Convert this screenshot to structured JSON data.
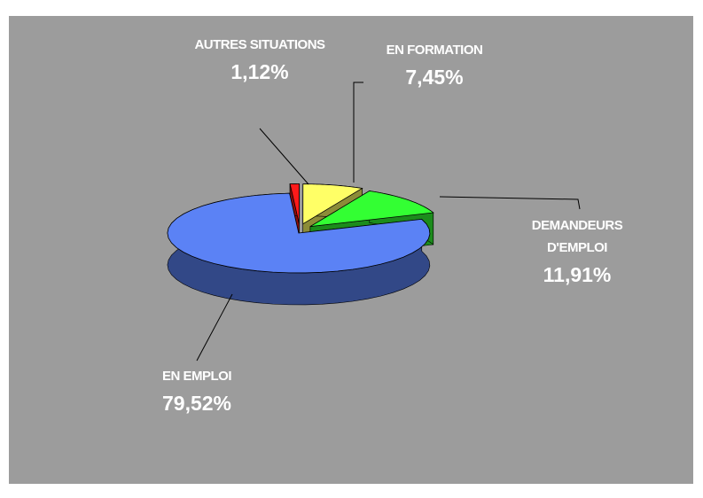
{
  "chart_data": {
    "type": "pie3d",
    "categories": [
      "AUTRES SITUATIONS",
      "EN FORMATION",
      "DEMANDEURS D'EMPLOI",
      "EN EMPLOI"
    ],
    "values": [
      1.12,
      7.45,
      11.91,
      79.52
    ],
    "value_labels": [
      "1,12%",
      "7,45%",
      "11,91%",
      "79,52%"
    ],
    "colors": [
      "#ff1a1a",
      "#ffff66",
      "#33ff33",
      "#5b82f5"
    ]
  }
}
